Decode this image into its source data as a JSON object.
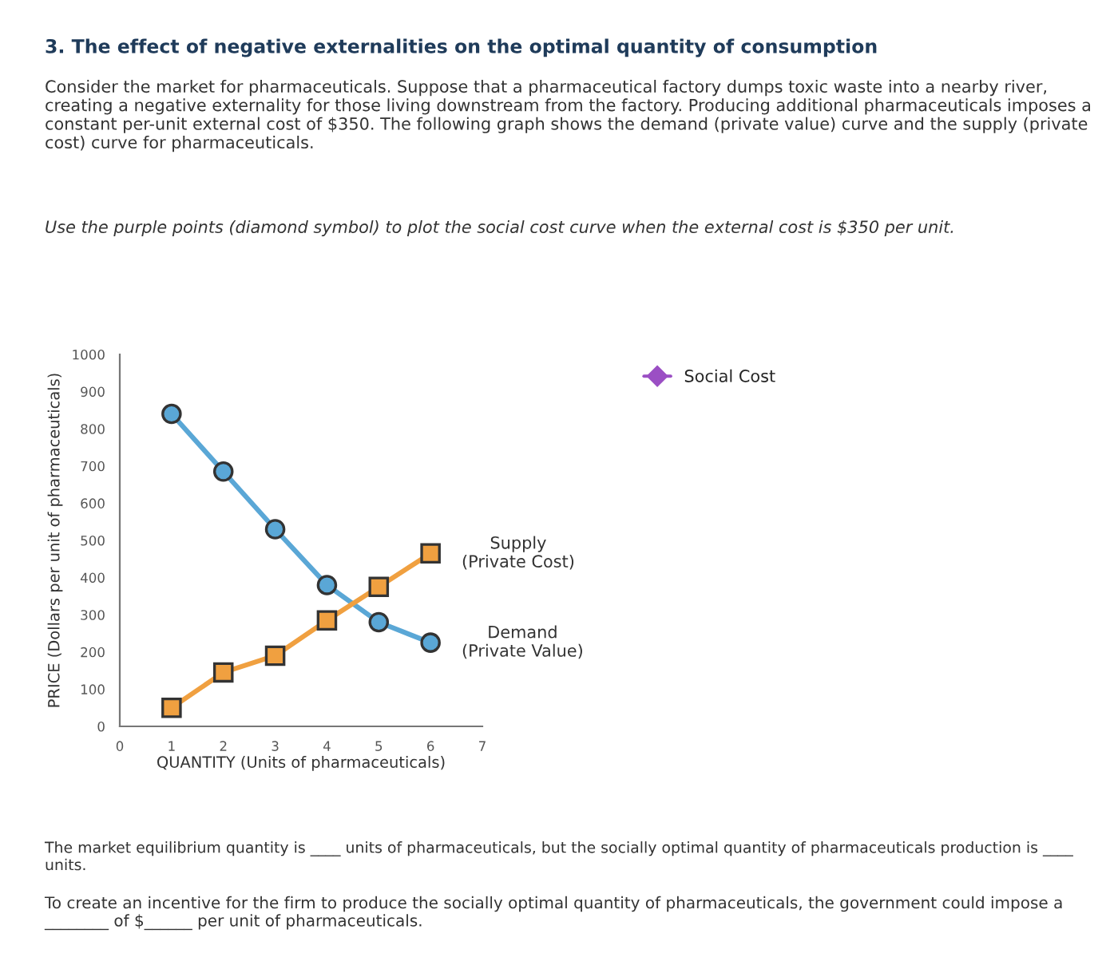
{
  "chart_data": {
    "type": "line",
    "title": "3. The effect of negative externalities on the optimal quantity of consumption",
    "annotations": [
      "Consider the market for pharmaceuticals. Suppose that a pharmaceutical factory dumps toxic waste into a nearby river, creating a negative externality for those living downstream from the factory. Producing additional pharmaceuticals imposes a constant per-unit external cost of $350. The following graph shows the demand (private value) curve and the supply (private cost) curve for pharmaceuticals.",
      "Use the purple points (diamond symbol) to plot the social cost curve when the external cost is $350 per unit.",
      "The market equilibrium quantity is ____ units of pharmaceuticals, but the socially optimal quantity of pharmaceuticals production is ____ units.",
      "To create an incentive for the firm to produce the socially optimal quantity of pharmaceuticals, the government could impose a ________ of $______ per unit of pharmaceuticals."
    ],
    "xlabel": "QUANTITY (Units of pharmaceuticals)",
    "ylabel": "PRICE (Dollars per unit of pharmaceuticals)",
    "x": [
      1,
      2,
      3,
      4,
      5,
      6
    ],
    "series": [
      {
        "name": "Demand\n(Private Value)",
        "color": "#5aa7d6",
        "marker": "circle",
        "values": [
          840,
          685,
          530,
          380,
          280,
          225
        ]
      },
      {
        "name": "Supply\n(Private Cost)",
        "color": "#f0a040",
        "marker": "square",
        "values": [
          50,
          145,
          190,
          285,
          375,
          465
        ]
      },
      {
        "name": "Social Cost",
        "color": "#9b4fc4",
        "marker": "diamond",
        "values": [
          null,
          null,
          null,
          null,
          null,
          null
        ]
      }
    ],
    "xlim": [
      0,
      7
    ],
    "xticks": [
      0,
      1,
      2,
      3,
      4,
      5,
      6,
      7
    ],
    "ylim": [
      0,
      1000
    ],
    "yticks": [
      0,
      100,
      200,
      300,
      400,
      500,
      600,
      700,
      800,
      900,
      1000
    ],
    "grid": false,
    "legend": "top right"
  }
}
